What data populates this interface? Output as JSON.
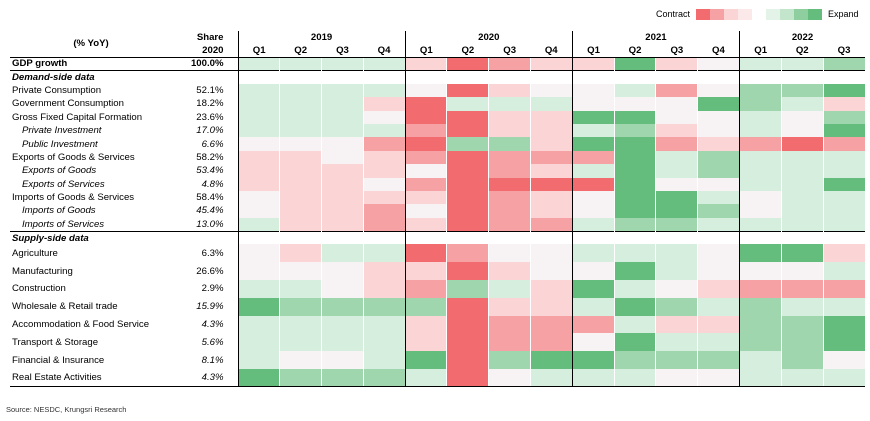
{
  "chart_data": {
    "type": "heatmap",
    "legend": {
      "low_label": "Contract",
      "high_label": "Expand"
    },
    "header": {
      "row_label": "(% YoY)",
      "share_label": "Share 2020"
    },
    "years": [
      "2019",
      "2020",
      "2021",
      "2022"
    ],
    "quarters": [
      "Q1",
      "Q2",
      "Q3",
      "Q4",
      "Q1",
      "Q2",
      "Q3",
      "Q4",
      "Q1",
      "Q2",
      "Q3",
      "Q4",
      "Q1",
      "Q2",
      "Q3"
    ],
    "scale_note": "values are relative intensity levels from -3 (strong contraction) to +3 (strong expansion)",
    "rows": [
      {
        "label": "GDP growth",
        "share": "100.0%",
        "style": "bold",
        "values": [
          1,
          1,
          1,
          1,
          -1,
          -3,
          -2,
          -1,
          -1,
          3,
          -1,
          0,
          1,
          1,
          2
        ]
      },
      {
        "label": "Demand-side data",
        "section": true
      },
      {
        "label": "Private Consumption",
        "share": "52.1%",
        "style": "plain",
        "values": [
          1,
          1,
          1,
          1,
          0,
          -3,
          -1,
          0,
          0,
          1,
          -2,
          0,
          2,
          2,
          3
        ]
      },
      {
        "label": "Government Consumption",
        "share": "18.2%",
        "style": "plain",
        "values": [
          1,
          1,
          1,
          -1,
          -3,
          1,
          1,
          1,
          0,
          0,
          0,
          3,
          2,
          1,
          -1
        ]
      },
      {
        "label": "Gross Fixed Capital Formation",
        "share": "23.6%",
        "style": "plain",
        "values": [
          1,
          1,
          1,
          0,
          -3,
          -3,
          -1,
          -1,
          3,
          3,
          0,
          0,
          1,
          0,
          2
        ]
      },
      {
        "label": "Private Investment",
        "share": "17.0%",
        "style": "indent",
        "values": [
          1,
          1,
          1,
          1,
          -2,
          -3,
          -1,
          -1,
          1,
          2,
          -1,
          0,
          1,
          0,
          3
        ]
      },
      {
        "label": "Public Investment",
        "share": "6.6%",
        "style": "indent",
        "values": [
          0,
          0,
          0,
          -2,
          -3,
          2,
          2,
          -1,
          3,
          3,
          -2,
          -1,
          -2,
          -3,
          -2
        ]
      },
      {
        "label": "Exports of Goods & Services",
        "share": "58.2%",
        "style": "plain",
        "values": [
          -1,
          -1,
          0,
          -1,
          -2,
          -3,
          -2,
          -2,
          -2,
          3,
          1,
          2,
          1,
          1,
          1
        ]
      },
      {
        "label": "Exports of Goods",
        "share": "53.4%",
        "style": "indent",
        "values": [
          -1,
          -1,
          -1,
          -1,
          0,
          -3,
          -2,
          -1,
          1,
          3,
          1,
          2,
          1,
          1,
          1
        ]
      },
      {
        "label": "Exports of Services",
        "share": "4.8%",
        "style": "indent",
        "values": [
          -1,
          -1,
          -1,
          0,
          -2,
          -3,
          -3,
          -3,
          -3,
          3,
          0,
          0,
          1,
          1,
          3
        ]
      },
      {
        "label": "Imports of Goods & Services",
        "share": "58.4%",
        "style": "plain",
        "values": [
          0,
          -1,
          -1,
          -1,
          -1,
          -3,
          -2,
          -1,
          0,
          3,
          3,
          1,
          0,
          1,
          1
        ]
      },
      {
        "label": "Imports of Goods",
        "share": "45.4%",
        "style": "indent",
        "values": [
          0,
          -1,
          -1,
          -2,
          0,
          -3,
          -2,
          -1,
          0,
          3,
          3,
          2,
          0,
          1,
          1
        ]
      },
      {
        "label": "Imports of Services",
        "share": "13.0%",
        "style": "indent",
        "values": [
          1,
          -1,
          -1,
          -2,
          -1,
          -3,
          -2,
          -2,
          1,
          2,
          2,
          1,
          1,
          1,
          1
        ]
      },
      {
        "label": "Supply-side data",
        "section": true
      },
      {
        "label": "Agriculture",
        "share": "6.3%",
        "style": "plain",
        "values": [
          0,
          -1,
          1,
          1,
          -3,
          -2,
          0,
          0,
          1,
          1,
          1,
          0,
          3,
          3,
          -1
        ]
      },
      {
        "label": "Manufacturing",
        "share": "26.6%",
        "style": "plain",
        "values": [
          0,
          0,
          0,
          -1,
          -1,
          -3,
          -1,
          0,
          0,
          3,
          1,
          0,
          0,
          0,
          1
        ]
      },
      {
        "label": "Construction",
        "share": "2.9%",
        "style": "plain",
        "values": [
          1,
          1,
          0,
          -1,
          -2,
          2,
          1,
          -1,
          3,
          1,
          0,
          -1,
          -2,
          -2,
          -2
        ]
      },
      {
        "label": "Wholesale & Retail trade",
        "share": "15.9%",
        "style": "indent",
        "values": [
          3,
          2,
          2,
          2,
          2,
          -3,
          -1,
          -1,
          1,
          3,
          2,
          1,
          2,
          1,
          1
        ]
      },
      {
        "label": "Accommodation & Food Service",
        "share": "4.3%",
        "style": "indent",
        "values": [
          1,
          1,
          1,
          1,
          -1,
          -3,
          -2,
          -2,
          -2,
          1,
          -1,
          -1,
          2,
          2,
          3
        ]
      },
      {
        "label": "Transport & Storage",
        "share": "5.6%",
        "style": "indent",
        "values": [
          1,
          1,
          1,
          1,
          -1,
          -3,
          -2,
          -2,
          0,
          3,
          1,
          1,
          2,
          2,
          3
        ]
      },
      {
        "label": "Financial & Insurance",
        "share": "8.1%",
        "style": "indent",
        "values": [
          1,
          0,
          0,
          1,
          3,
          -3,
          2,
          3,
          3,
          2,
          2,
          2,
          1,
          2,
          0
        ]
      },
      {
        "label": "Real Estate Activities",
        "share": "4.3%",
        "style": "indent",
        "values": [
          3,
          2,
          2,
          2,
          1,
          -3,
          0,
          1,
          1,
          1,
          0,
          0,
          1,
          1,
          1
        ]
      }
    ]
  },
  "palette": {
    "neg3": "#f26b6e",
    "neg2": "#f6a2a4",
    "neg1": "#fbd5d6",
    "zero": "#f7f3f4",
    "pos1": "#d6eedd",
    "pos2": "#9fd6ae",
    "pos3": "#64bc7d"
  },
  "legend_colors": [
    "#f26b6e",
    "#f6a2a4",
    "#fbd5d6",
    "#fbe9ea",
    "#ffffff",
    "#e4f3e8",
    "#c2e5cb",
    "#8fcf9f",
    "#64bc7d"
  ],
  "source": "Source: NESDC, Krungsri Research"
}
